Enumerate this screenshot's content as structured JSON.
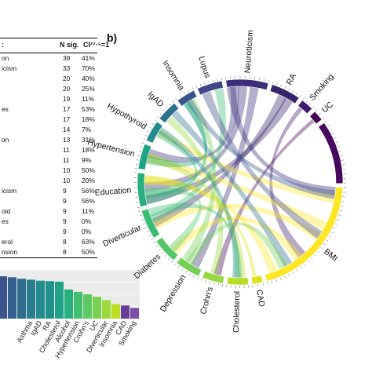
{
  "table": {
    "header": {
      "name": ":",
      "n_sig": "N sig.",
      "ci": "CI²⁷·⁵=1"
    },
    "rows": [
      {
        "name": "on",
        "n": "39",
        "p": "41%"
      },
      {
        "name": "icism",
        "n": "33",
        "p": "70%"
      },
      {
        "name": "",
        "n": "20",
        "p": "40%"
      },
      {
        "name": "",
        "n": "20",
        "p": "25%"
      },
      {
        "name": "",
        "n": "19",
        "p": "11%"
      },
      {
        "name": "es",
        "n": "17",
        "p": "53%"
      },
      {
        "name": "",
        "n": "17",
        "p": "18%"
      },
      {
        "name": "",
        "n": "14",
        "p": "7%"
      },
      {
        "name": "on",
        "n": "13",
        "p": "31%"
      },
      {
        "name": "",
        "n": "11",
        "p": "18%"
      },
      {
        "name": "",
        "n": "11",
        "p": "9%"
      },
      {
        "name": "",
        "n": "10",
        "p": "50%"
      },
      {
        "name": "",
        "n": "10",
        "p": "20%"
      },
      {
        "name": "icism",
        "n": "9",
        "p": "56%"
      },
      {
        "name": "",
        "n": "9",
        "p": "56%"
      },
      {
        "name": "oid",
        "n": "9",
        "p": "11%"
      },
      {
        "name": "es",
        "n": "9",
        "p": "0%"
      },
      {
        "name": "",
        "n": "9",
        "p": "0%"
      },
      {
        "name": "erol",
        "n": "8",
        "p": "63%"
      },
      {
        "name": "nsion",
        "n": "8",
        "p": "50%"
      }
    ]
  },
  "panel_b_label": "b)",
  "chart_data": [
    {
      "type": "bar",
      "title": "",
      "xlabel": "",
      "ylabel": "",
      "ylim": [
        0,
        1
      ],
      "grid": true,
      "categories": [
        "",
        "",
        "",
        "",
        "Asthma",
        "IgAD",
        "RA",
        "Cholesterol",
        "Alcohol",
        "Hypertension",
        "Crohn's",
        "UC",
        "Diverticular",
        "Insomnia",
        "CAD",
        "Smoking"
      ],
      "visible_labels": [
        "Asthma",
        "IgAD",
        "RA",
        "Cholesterol",
        "Alcohol",
        "Hypertension",
        "Crohn's",
        "UC",
        "Diverticular",
        "Insomnia",
        "CAD",
        "Smoking"
      ],
      "values": [
        0.9,
        0.87,
        0.85,
        0.82,
        0.8,
        0.78,
        0.77,
        0.76,
        0.6,
        0.55,
        0.5,
        0.45,
        0.38,
        0.3,
        0.27,
        0.22
      ],
      "colors": [
        "#3f4a8a",
        "#3b528b",
        "#355f8d",
        "#2f6c8e",
        "#287d8e",
        "#238a8d",
        "#21918c",
        "#20a386",
        "#2ab07f",
        "#44bf70",
        "#5ec962",
        "#7ad151",
        "#9bd93c",
        "#bddf26",
        "#6a3d9a",
        "#7b4fa8"
      ]
    },
    {
      "type": "chord",
      "title": "",
      "sectors": [
        "Neuroticism",
        "RA",
        "Smoking",
        "UC",
        "",
        "BMI",
        "CAD",
        "Cholesterol",
        "Crohn's",
        "Depression",
        "Diabetes",
        "Diverticular",
        "Education",
        "Hypertension",
        "Hypothyroid",
        "IgAD",
        "Insomnia",
        "Lupus"
      ],
      "sector_sizes": [
        20,
        14,
        6,
        5,
        30,
        60,
        5,
        10,
        10,
        12,
        12,
        14,
        16,
        12,
        10,
        10,
        9,
        12
      ],
      "sector_colors": [
        "#3b2d79",
        "#36256a",
        "#3e1c6b",
        "#440154",
        "#46085c",
        "#fde725",
        "#dce319",
        "#b8de29",
        "#95d840",
        "#73d055",
        "#55c667",
        "#3cbb75",
        "#29af7f",
        "#20a386",
        "#238a8d",
        "#2d708e",
        "#39568c",
        "#404688"
      ],
      "links": [
        [
          "Neuroticism",
          "BMI"
        ],
        [
          "Neuroticism",
          "Education"
        ],
        [
          "Neuroticism",
          "Depression"
        ],
        [
          "Neuroticism",
          "Hypertension"
        ],
        [
          "RA",
          "Diverticular"
        ],
        [
          "RA",
          "Education"
        ],
        [
          "Smoking",
          "BMI"
        ],
        [
          "UC",
          "Crohn's"
        ],
        [
          "BMI",
          "Education"
        ],
        [
          "BMI",
          "Hypertension"
        ],
        [
          "BMI",
          "Diabetes"
        ],
        [
          "BMI",
          "Hypothyroid"
        ],
        [
          "BMI",
          "Diverticular"
        ],
        [
          "CAD",
          "Education"
        ],
        [
          "Cholesterol",
          "Hypertension"
        ],
        [
          "Crohn's",
          "IgAD"
        ],
        [
          "Depression",
          "Insomnia"
        ],
        [
          "Diabetes",
          "Education"
        ],
        [
          "Diverticular",
          "Lupus"
        ],
        [
          "Education",
          "Hypothyroid"
        ],
        [
          "Hypertension",
          "Insomnia"
        ],
        [
          "IgAD",
          "BMI"
        ],
        [
          "Lupus",
          "BMI"
        ],
        [
          "Insomnia",
          "BMI"
        ],
        [
          "Hypothyroid",
          "Cholesterol"
        ],
        [
          "Education",
          "Insomnia"
        ],
        [
          "Depression",
          "BMI"
        ],
        [
          "Diverticular",
          "Cholesterol"
        ]
      ]
    }
  ]
}
